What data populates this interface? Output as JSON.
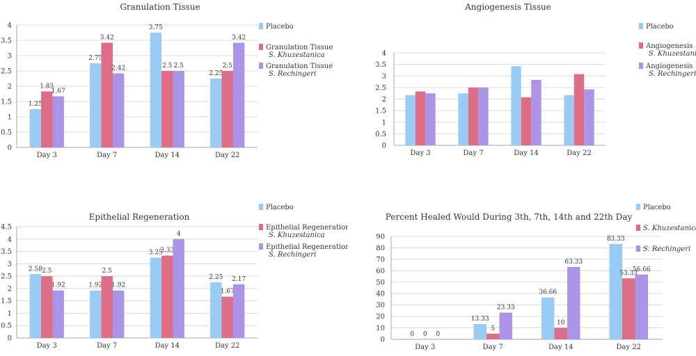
{
  "colors": {
    "placebo": "#99ccf5",
    "khuz": "#de6d86",
    "rech": "#ab94e8",
    "grid": "#d9d9d9",
    "axis": "#a6a6a6",
    "text": "#333333"
  },
  "chart_data": [
    {
      "type": "bar",
      "title": "Granulation Tissue",
      "categories": [
        "Day 3",
        "Day 7",
        "Day 14",
        "Day 22"
      ],
      "ylim": [
        0,
        4
      ],
      "yticks": [
        "0",
        "0.5",
        "1",
        "1.5",
        "2",
        "2.5",
        "3",
        "3.5",
        "4"
      ],
      "show_labels": true,
      "legend_position": "right",
      "series": [
        {
          "name": "Placebo",
          "sub": "",
          "color_key": "placebo",
          "values": [
            1.25,
            2.75,
            3.75,
            2.25
          ],
          "labels": [
            "1.25",
            "2.75",
            "3.75",
            "2.25"
          ]
        },
        {
          "name": "Granulation Tissue",
          "sub": "S. Khuzestanica",
          "color_key": "khuz",
          "values": [
            1.83,
            3.42,
            2.5,
            2.5
          ],
          "labels": [
            "1.83",
            "3.42",
            "2.5",
            "2.5"
          ]
        },
        {
          "name": "Granulation Tissue",
          "sub": "S. Rechingeri",
          "color_key": "rech",
          "values": [
            1.67,
            2.42,
            2.5,
            3.42
          ],
          "labels": [
            "1.67",
            "2.42",
            "2.5",
            "3.42"
          ]
        }
      ]
    },
    {
      "type": "bar",
      "title": "Angiogenesis Tissue",
      "categories": [
        "Day 3",
        "Day 7",
        "Day 14",
        "Day 22"
      ],
      "ylim": [
        0,
        4
      ],
      "yticks": [
        "0",
        "0.5",
        "1",
        "1.5",
        "2",
        "2.5",
        "3",
        "3.5",
        "4"
      ],
      "show_labels": false,
      "legend_position": "right",
      "series": [
        {
          "name": "Placebo",
          "sub": "",
          "color_key": "placebo",
          "values": [
            2.17,
            2.25,
            3.42,
            2.17
          ],
          "labels": []
        },
        {
          "name": "Angiogenesis",
          "sub": "S. Khuzestanica",
          "color_key": "khuz",
          "values": [
            2.33,
            2.5,
            2.08,
            3.08
          ],
          "labels": []
        },
        {
          "name": "Angiogenesis",
          "sub": "S. Rechingeri",
          "color_key": "rech",
          "values": [
            2.25,
            2.5,
            2.83,
            2.42
          ],
          "labels": []
        }
      ]
    },
    {
      "type": "bar",
      "title": "Epithelial Regeneration",
      "categories": [
        "Day 3",
        "Day 7",
        "Day 14",
        "Day 22"
      ],
      "ylim": [
        0,
        4.5
      ],
      "yticks": [
        "0",
        "0.5",
        "1",
        "1.5",
        "2",
        "2.5",
        "3",
        "3.5",
        "4",
        "4.5"
      ],
      "show_labels": true,
      "legend_position": "right",
      "series": [
        {
          "name": "Placebo",
          "sub": "",
          "color_key": "placebo",
          "values": [
            2.58,
            1.92,
            3.25,
            2.25
          ],
          "labels": [
            "2.58",
            "1.92",
            "3.25",
            "2.25"
          ]
        },
        {
          "name": "Epithelial Regeneration",
          "sub": "S. Khuzestanica",
          "color_key": "khuz",
          "values": [
            2.5,
            2.5,
            3.33,
            1.67
          ],
          "labels": [
            "2.5",
            "2.5",
            "3.33",
            "1.67"
          ]
        },
        {
          "name": "Epithelial Regeneration",
          "sub": "S. Rechingeri",
          "color_key": "rech",
          "values": [
            1.92,
            1.92,
            4,
            2.17
          ],
          "labels": [
            "1.92",
            "1.92",
            "4",
            "2.17"
          ]
        }
      ]
    },
    {
      "type": "bar",
      "title": "Percent Healed Would During 3th, 7th, 14th and 22th Day",
      "categories": [
        "Day 3",
        "Day 7",
        "Day 14",
        "Day 22"
      ],
      "ylim": [
        0,
        90
      ],
      "yticks": [
        "0",
        "10",
        "20",
        "30",
        "40",
        "50",
        "60",
        "70",
        "80",
        "90"
      ],
      "show_labels": true,
      "legend_position": "right",
      "series": [
        {
          "name": "Placebo",
          "sub": "",
          "color_key": "placebo",
          "values": [
            0,
            13.33,
            36.66,
            83.33
          ],
          "labels": [
            "0",
            "13.33",
            "36.66",
            "83.33"
          ]
        },
        {
          "name": "",
          "sub": "S. Khuzestanica",
          "color_key": "khuz",
          "values": [
            0,
            5,
            10,
            53.33
          ],
          "labels": [
            "0",
            "5",
            "10",
            "53.33"
          ]
        },
        {
          "name": "",
          "sub": "S. Rechingeri",
          "color_key": "rech",
          "values": [
            0,
            23.33,
            63.33,
            56.66
          ],
          "labels": [
            "0",
            "23.33",
            "63.33",
            "56.66"
          ]
        }
      ]
    }
  ]
}
